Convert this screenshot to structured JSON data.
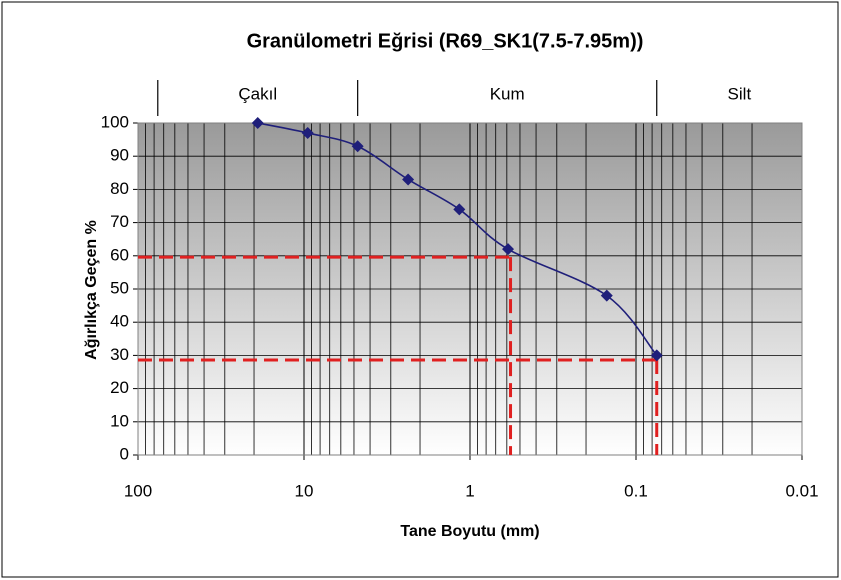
{
  "chart_data": {
    "type": "line",
    "title": "Granülometri Eğrisi (R69_SK1(7.5-7.95m))",
    "x_label": "Tane Boyutu (mm)",
    "y_label": "Ağırlıkça Geçen %",
    "x": [
      19,
      9.5,
      4.75,
      2.36,
      1.16,
      0.59,
      0.15,
      0.075
    ],
    "values": [
      100,
      97,
      93,
      83,
      74,
      62,
      48,
      30
    ],
    "color": "#1f1f7a",
    "xlim": [
      100,
      0.01
    ],
    "xticks": [
      100,
      10,
      1,
      0.1,
      0.01
    ],
    "xlog": true,
    "minor_grid": true,
    "ylim": [
      0,
      100
    ],
    "yticks": [
      0,
      10,
      20,
      30,
      40,
      50,
      60,
      70,
      80,
      90,
      100
    ],
    "grid": true,
    "bands": {
      "labels": [
        "Çakıl",
        "Kum",
        "Silt"
      ],
      "bounds": [
        76,
        4.75,
        0.075
      ]
    },
    "reference_lines": [
      {
        "x": 0.57,
        "y": 59.6
      },
      {
        "x": 0.075,
        "y": 28.6
      }
    ],
    "reference_color": "#e02020"
  }
}
